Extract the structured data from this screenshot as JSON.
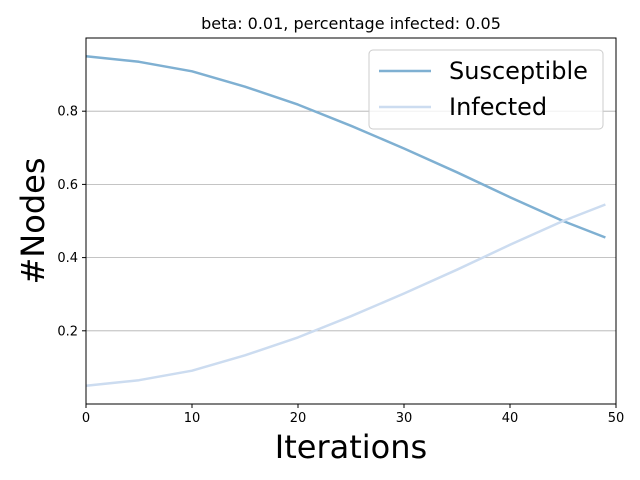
{
  "chart_data": {
    "type": "line",
    "title": "beta: 0.01, percentage infected: 0.05",
    "xlabel": "Iterations",
    "ylabel": "#Nodes",
    "xlim": [
      0,
      50
    ],
    "ylim": [
      0,
      1
    ],
    "xticks": [
      0,
      10,
      20,
      30,
      40,
      50
    ],
    "yticks": [
      0.2,
      0.4,
      0.6,
      0.8
    ],
    "grid": "y-major",
    "legend_position": "top-right",
    "x": [
      0,
      5,
      10,
      15,
      20,
      25,
      30,
      35,
      40,
      45,
      49
    ],
    "series": [
      {
        "name": "Susceptible",
        "color": "#7fb0d2",
        "values": [
          0.95,
          0.935,
          0.909,
          0.867,
          0.818,
          0.76,
          0.698,
          0.633,
          0.565,
          0.5,
          0.455
        ]
      },
      {
        "name": "Infected",
        "color": "#ccdcf0",
        "values": [
          0.05,
          0.065,
          0.091,
          0.133,
          0.182,
          0.24,
          0.302,
          0.367,
          0.435,
          0.5,
          0.545
        ]
      }
    ]
  }
}
